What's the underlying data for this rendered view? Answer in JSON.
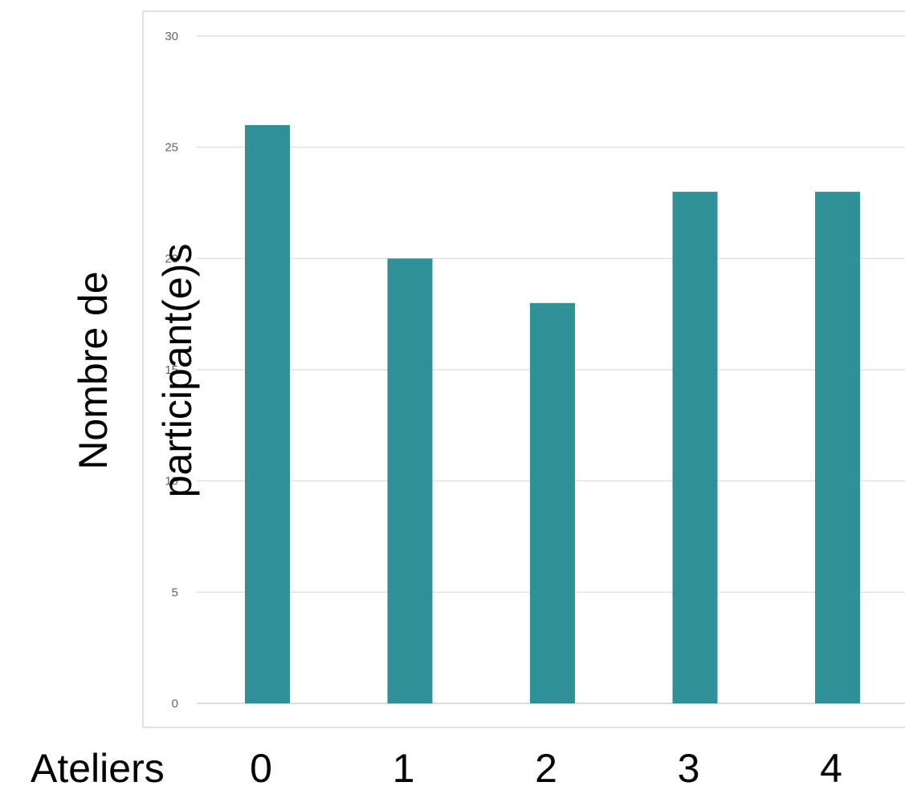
{
  "chart_data": {
    "type": "bar",
    "categories": [
      "0",
      "1",
      "2",
      "3",
      "4"
    ],
    "values": [
      26,
      20,
      18,
      23,
      23
    ],
    "xlabel": "Ateliers",
    "ylabel_lines": [
      "Nombre de",
      "participant(e)s"
    ],
    "ylim": [
      0,
      30
    ],
    "yticks": [
      "0",
      "5",
      "10",
      "15",
      "20",
      "25",
      "30"
    ],
    "grid": true,
    "colors": {
      "bar": "#2f9098",
      "grid": "#e0e0e0",
      "frame": "#d9d9d9",
      "tick_text": "#5f6368"
    }
  }
}
